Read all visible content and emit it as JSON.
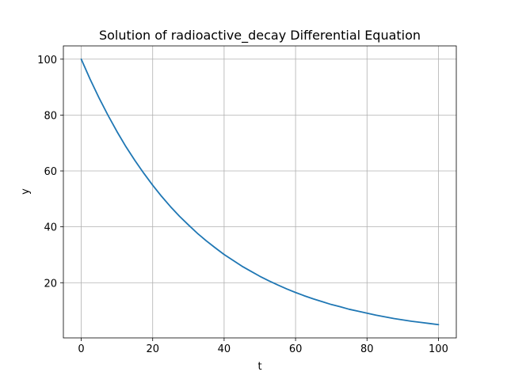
{
  "chart_data": {
    "type": "line",
    "title": "Solution of radioactive_decay Differential Equation",
    "xlabel": "t",
    "ylabel": "y",
    "xlim": [
      -5,
      105
    ],
    "ylim": [
      0.25,
      104.75
    ],
    "x_ticks": [
      0,
      20,
      40,
      60,
      80,
      100
    ],
    "x_tick_labels": [
      "0",
      "20",
      "40",
      "60",
      "80",
      "100"
    ],
    "y_ticks": [
      20,
      40,
      60,
      80,
      100
    ],
    "y_tick_labels": [
      "20",
      "40",
      "60",
      "80",
      "100"
    ],
    "grid": true,
    "line_color": "#1f77b4",
    "grid_color": "#b0b0b0",
    "series": [
      {
        "x": [
          0,
          2.5,
          5,
          7.5,
          10,
          12.5,
          15,
          17.5,
          20,
          22.5,
          25,
          27.5,
          30,
          32.5,
          35,
          37.5,
          40,
          42.5,
          45,
          47.5,
          50,
          52.5,
          55,
          57.5,
          60,
          62.5,
          65,
          67.5,
          70,
          72.5,
          75,
          77.5,
          80,
          82.5,
          85,
          87.5,
          90,
          92.5,
          95,
          97.5,
          100
        ],
        "y": [
          100,
          92.8,
          86.1,
          79.9,
          74.1,
          68.7,
          63.8,
          59.2,
          54.9,
          50.9,
          47.2,
          43.8,
          40.7,
          37.7,
          35.0,
          32.5,
          30.1,
          28.0,
          25.9,
          24.1,
          22.3,
          20.7,
          19.2,
          17.8,
          16.5,
          15.3,
          14.2,
          13.2,
          12.2,
          11.4,
          10.5,
          9.8,
          9.1,
          8.4,
          7.8,
          7.2,
          6.7,
          6.2,
          5.8,
          5.4,
          5.0
        ]
      }
    ]
  }
}
